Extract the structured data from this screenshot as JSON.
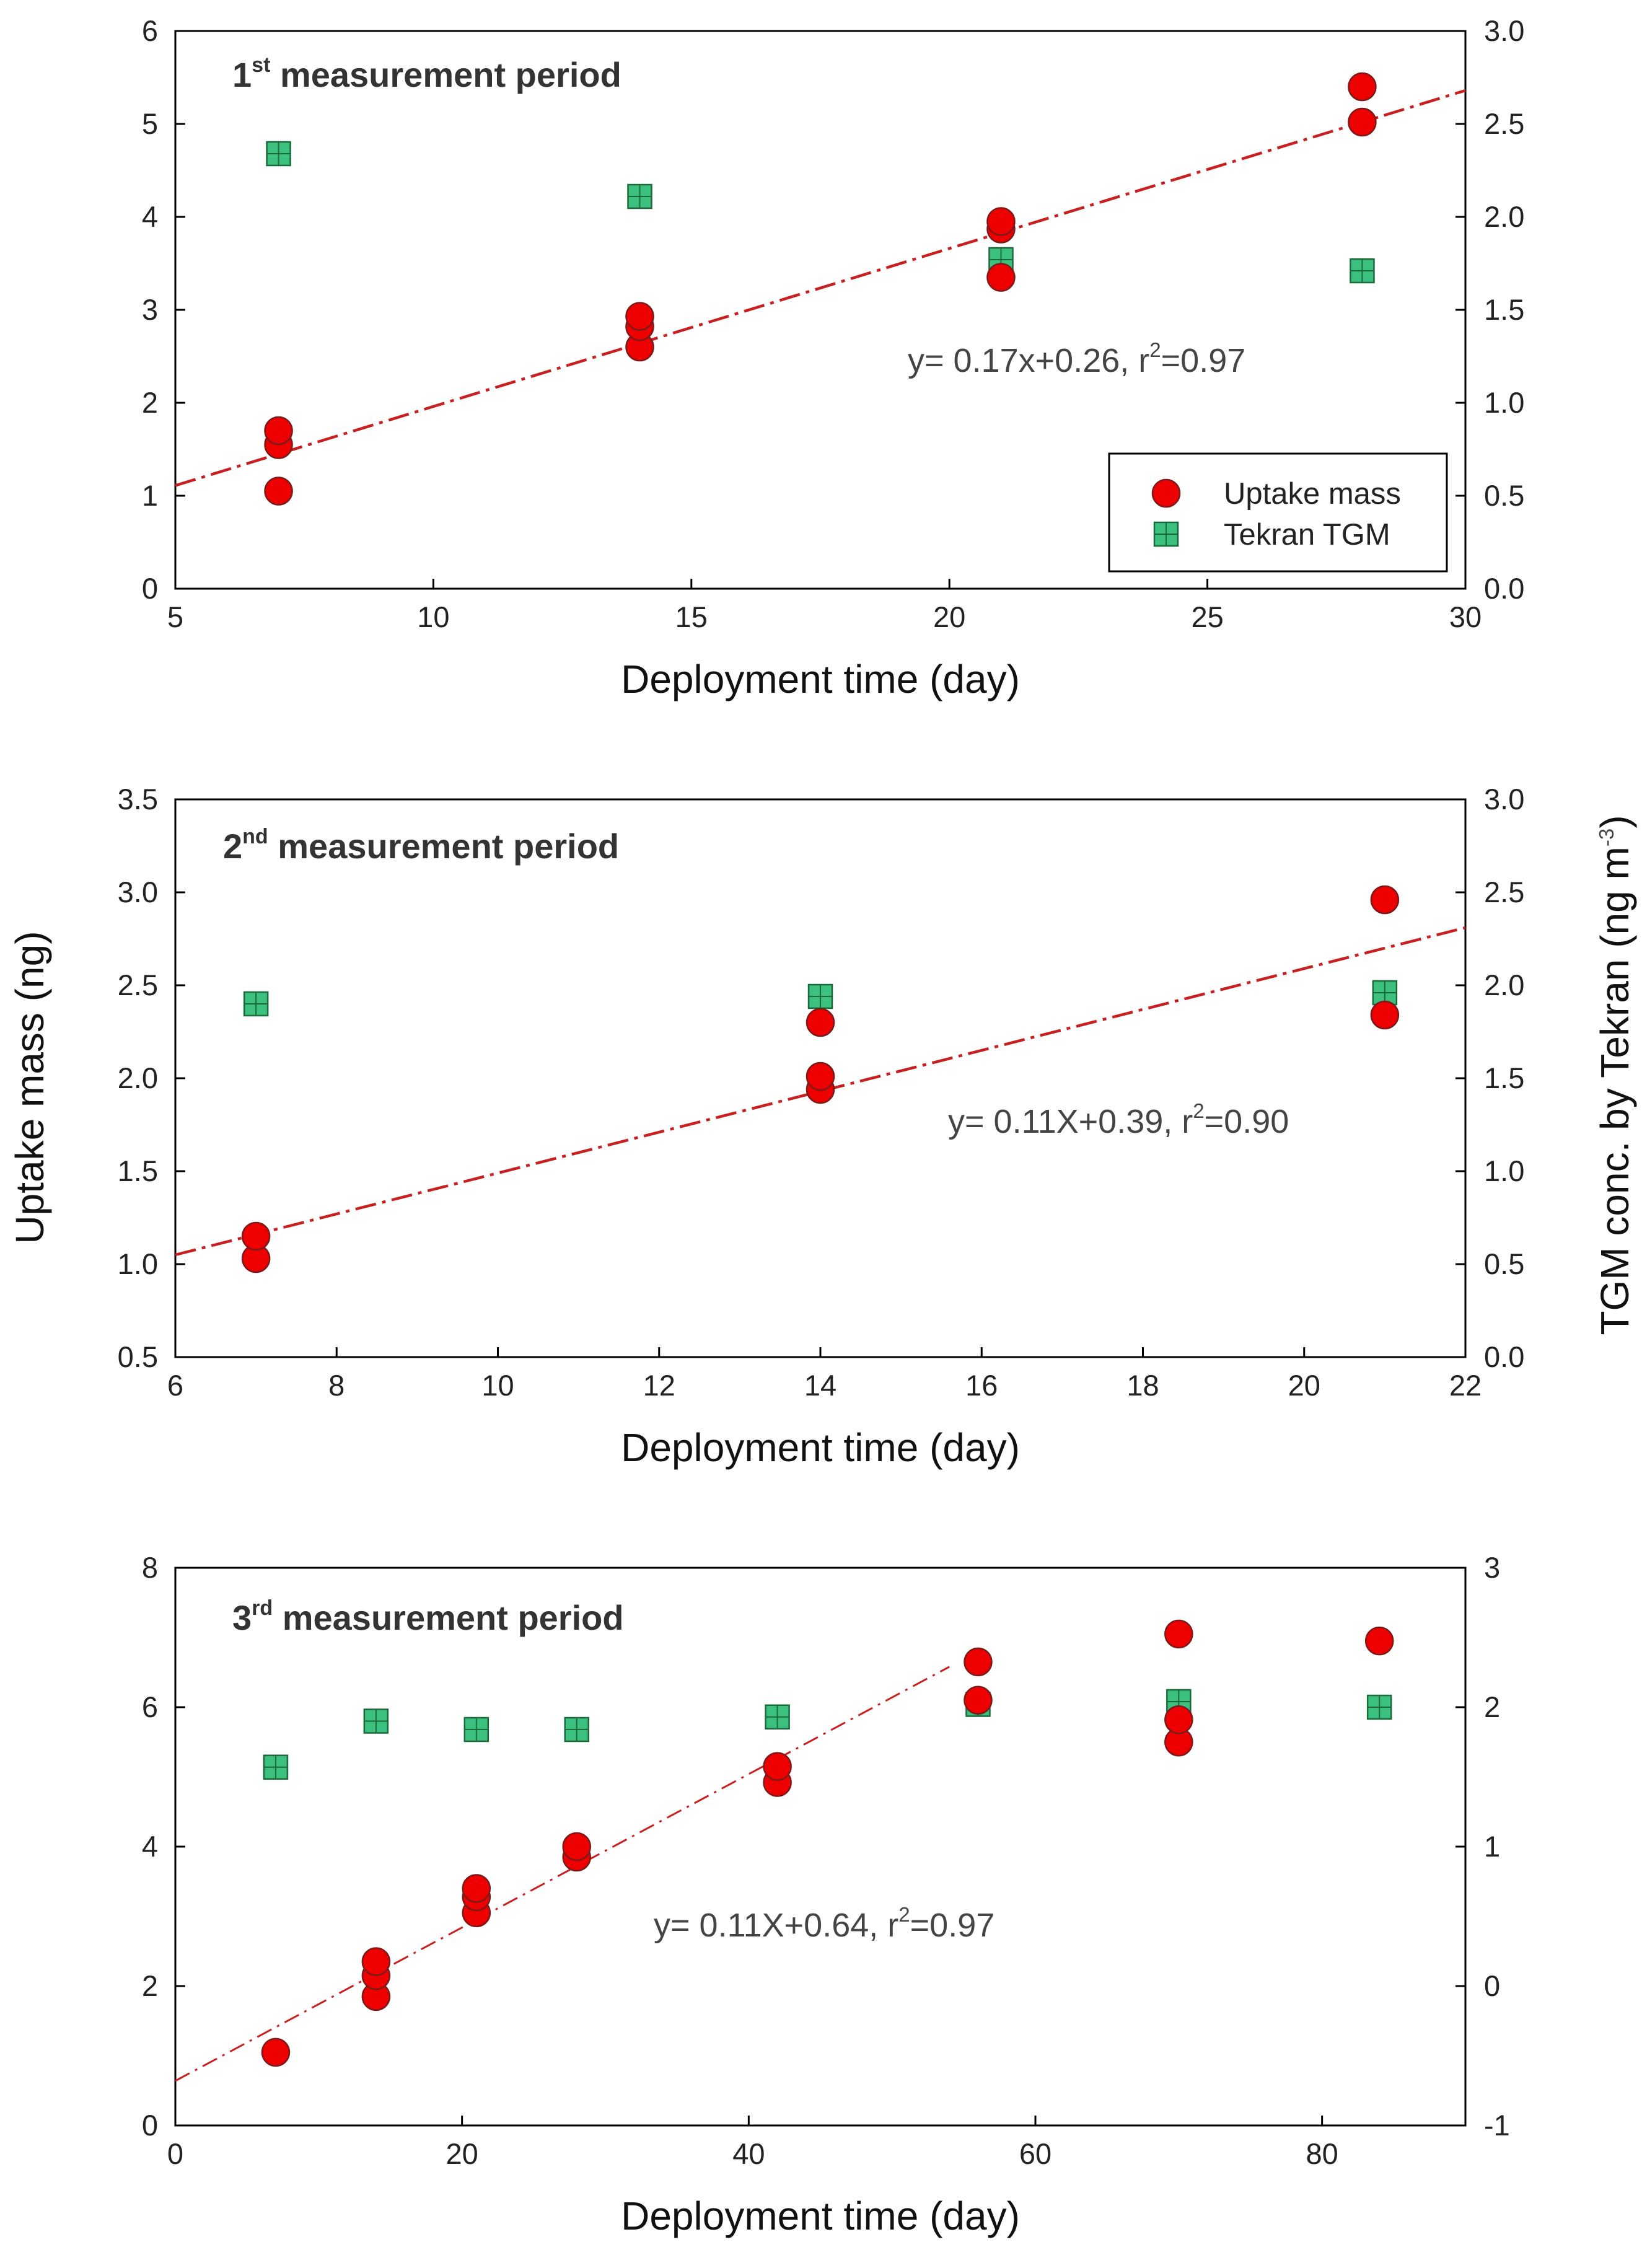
{
  "shared": {
    "ylabel_left": "Uptake mass (ng)",
    "ylabel_right": "TGM conc. by Tekran (ng m",
    "ylabel_right_sup": "-3",
    "ylabel_right_close": ")"
  },
  "legend": {
    "uptake_label": "Uptake mass",
    "tekran_label": "Tekran TGM"
  },
  "colors": {
    "uptake_fill": "#ee0000",
    "uptake_stroke": "#7a1a1a",
    "tekran_fill": "#3cc080",
    "tekran_stroke": "#1a6a3a",
    "fit_line": "#c82020"
  },
  "chart_data": [
    {
      "type": "scatter",
      "title_main": "1",
      "title_sup": "st",
      "title_rest": " measurement period",
      "xlabel": "Deployment time (day)",
      "xlim": [
        5,
        30
      ],
      "xticks": [
        5,
        10,
        15,
        20,
        25,
        30
      ],
      "ylim": [
        0,
        6
      ],
      "yticks": [
        0,
        1,
        2,
        3,
        4,
        5,
        6
      ],
      "ylim_right": [
        0,
        3
      ],
      "yticks_right": [
        "0.0",
        "0.5",
        "1.0",
        "1.5",
        "2.0",
        "2.5",
        "3.0"
      ],
      "fit": {
        "slope": 0.17,
        "intercept": 0.26,
        "x_range": [
          5,
          30
        ]
      },
      "equation": {
        "a": "y= 0.17x+0.26,  r",
        "sup": "2",
        "b": "=0.97"
      },
      "legend_position": "bottom-right",
      "series": [
        {
          "name": "Uptake mass",
          "axis": "left",
          "points": [
            [
              7,
              1.05
            ],
            [
              7,
              1.55
            ],
            [
              7,
              1.7
            ],
            [
              14,
              2.6
            ],
            [
              14,
              2.82
            ],
            [
              14,
              2.93
            ],
            [
              21,
              3.35
            ],
            [
              21,
              3.87
            ],
            [
              21,
              3.95
            ],
            [
              28,
              5.02
            ],
            [
              28,
              5.4
            ]
          ]
        },
        {
          "name": "Tekran TGM",
          "axis": "right",
          "points": [
            [
              7,
              2.34
            ],
            [
              14,
              2.11
            ],
            [
              21,
              1.77
            ],
            [
              28,
              1.71
            ]
          ]
        }
      ]
    },
    {
      "type": "scatter",
      "title_main": "2",
      "title_sup": "nd",
      "title_rest": " measurement period",
      "xlabel": "Deployment time (day)",
      "xlim": [
        6,
        22
      ],
      "xticks": [
        6,
        8,
        10,
        12,
        14,
        16,
        18,
        20,
        22
      ],
      "ylim": [
        0.5,
        3.5
      ],
      "yticks": [
        "0.5",
        "1.0",
        "1.5",
        "2.0",
        "2.5",
        "3.0",
        "3.5"
      ],
      "ylim_right": [
        0,
        3
      ],
      "yticks_right": [
        "0.0",
        "0.5",
        "1.0",
        "1.5",
        "2.0",
        "2.5",
        "3.0"
      ],
      "fit": {
        "slope": 0.11,
        "intercept": 0.39,
        "x_range": [
          6,
          22
        ]
      },
      "equation": {
        "a": "y= 0.11X+0.39,  r",
        "sup": "2",
        "b": "=0.90"
      },
      "series": [
        {
          "name": "Uptake mass",
          "axis": "left",
          "points": [
            [
              7,
              1.03
            ],
            [
              7,
              1.15
            ],
            [
              14,
              1.94
            ],
            [
              14,
              2.01
            ],
            [
              14,
              2.3
            ],
            [
              21,
              2.34
            ],
            [
              21,
              2.96
            ]
          ]
        },
        {
          "name": "Tekran TGM",
          "axis": "right",
          "points": [
            [
              7,
              1.9
            ],
            [
              14,
              1.94
            ],
            [
              21,
              1.96
            ]
          ]
        }
      ]
    },
    {
      "type": "scatter",
      "title_main": "3",
      "title_sup": "rd",
      "title_rest": " measurement period",
      "xlabel": "Deployment time (day)",
      "xlim": [
        0,
        90
      ],
      "xticks": [
        0,
        20,
        40,
        60,
        80
      ],
      "ylim": [
        0,
        8
      ],
      "yticks": [
        0,
        2,
        4,
        6,
        8
      ],
      "ylim_right": [
        -1,
        3
      ],
      "yticks_right": [
        "-1",
        "0",
        "1",
        "2",
        "3"
      ],
      "fit": {
        "slope": 0.11,
        "intercept": 0.64,
        "x_range": [
          0,
          54
        ]
      },
      "equation": {
        "a": "y= 0.11X+0.64,  r",
        "sup": "2",
        "b": "=0.97"
      },
      "series": [
        {
          "name": "Uptake mass",
          "axis": "left",
          "points": [
            [
              7,
              1.05
            ],
            [
              14,
              1.85
            ],
            [
              14,
              2.15
            ],
            [
              14,
              2.35
            ],
            [
              21,
              3.05
            ],
            [
              21,
              3.28
            ],
            [
              21,
              3.4
            ],
            [
              28,
              3.85
            ],
            [
              28,
              4.0
            ],
            [
              42,
              4.92
            ],
            [
              42,
              5.15
            ],
            [
              56,
              6.1
            ],
            [
              56,
              6.65
            ],
            [
              70,
              5.5
            ],
            [
              70,
              5.82
            ],
            [
              70,
              7.05
            ],
            [
              84,
              6.95
            ]
          ]
        },
        {
          "name": "Tekran TGM",
          "axis": "right",
          "points": [
            [
              7,
              1.57
            ],
            [
              14,
              1.9
            ],
            [
              21,
              1.84
            ],
            [
              28,
              1.84
            ],
            [
              42,
              1.93
            ],
            [
              56,
              2.02
            ],
            [
              70,
              2.04
            ],
            [
              84,
              2.0
            ]
          ]
        }
      ]
    }
  ]
}
